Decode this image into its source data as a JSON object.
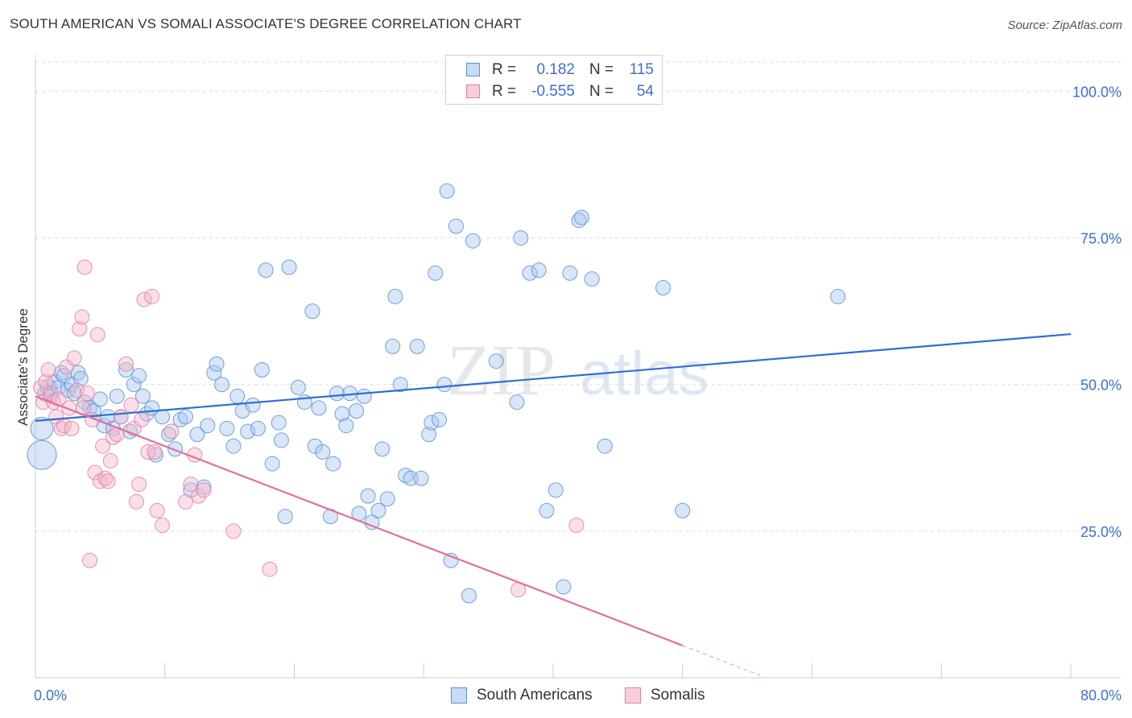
{
  "title": "SOUTH AMERICAN VS SOMALI ASSOCIATE'S DEGREE CORRELATION CHART",
  "source": "Source: ZipAtlas.com",
  "watermark": {
    "zip": "ZIP",
    "atlas": "atlas"
  },
  "colors": {
    "blue_fill": "#a8c8f0",
    "blue_stroke": "#5b8fd6",
    "blue_line": "#2e6fd0",
    "pink_fill": "#f5b8cc",
    "pink_stroke": "#e07fa0",
    "pink_line": "#e0709a",
    "tick_label": "#3a6fd8",
    "grid": "#dddddd"
  },
  "legend": {
    "rows": [
      {
        "r_label": "R =",
        "r_value": "0.182",
        "n_label": "N =",
        "n_value": "115"
      },
      {
        "r_label": "R =",
        "r_value": "-0.555",
        "n_label": "N =",
        "n_value": "54"
      }
    ]
  },
  "bottom_legend": {
    "items": [
      {
        "label": "South Americans"
      },
      {
        "label": "Somalis"
      }
    ]
  },
  "chart_data": {
    "type": "scatter",
    "title": "SOUTH AMERICAN VS SOMALI ASSOCIATE'S DEGREE CORRELATION CHART",
    "xlabel": "",
    "ylabel": "Associate's Degree",
    "xlim": [
      0,
      80
    ],
    "ylim": [
      0,
      105
    ],
    "x_tick_labels": [
      {
        "value": 0,
        "label": "0.0%"
      },
      {
        "value": 80,
        "label": "80.0%"
      }
    ],
    "y_tick_labels": [
      {
        "value": 25,
        "label": "25.0%"
      },
      {
        "value": 50,
        "label": "50.0%"
      },
      {
        "value": 75,
        "label": "75.0%"
      },
      {
        "value": 100,
        "label": "100.0%"
      }
    ],
    "grid": true,
    "legend_position": "top-center",
    "series": [
      {
        "name": "South Americans",
        "r": 0.182,
        "n": 115,
        "trend": {
          "x": [
            0,
            80
          ],
          "y": [
            43.8,
            58.6
          ]
        },
        "points": [
          [
            0.5,
            38.0,
            18
          ],
          [
            0.5,
            42.5,
            14
          ],
          [
            0.8,
            48.5,
            10
          ],
          [
            1.0,
            49.5,
            10
          ],
          [
            1.2,
            48.0,
            9
          ],
          [
            1.5,
            50.5,
            9
          ],
          [
            1.8,
            49.5,
            9
          ],
          [
            2.0,
            52.0,
            9
          ],
          [
            2.2,
            51.5,
            9
          ],
          [
            2.5,
            49.0,
            9
          ],
          [
            2.8,
            50.0,
            9
          ],
          [
            3.0,
            48.5,
            9
          ],
          [
            3.3,
            52.0,
            9
          ],
          [
            3.5,
            51.0,
            9
          ],
          [
            3.8,
            47.0,
            9
          ],
          [
            4.2,
            46.0,
            9
          ],
          [
            4.5,
            45.5,
            9
          ],
          [
            5.0,
            47.5,
            9
          ],
          [
            5.3,
            43.0,
            9
          ],
          [
            5.6,
            44.5,
            9
          ],
          [
            6.0,
            42.5,
            9
          ],
          [
            6.3,
            48.0,
            9
          ],
          [
            6.6,
            44.5,
            9
          ],
          [
            7.0,
            52.5,
            9
          ],
          [
            7.3,
            42.0,
            9
          ],
          [
            7.6,
            50.0,
            9
          ],
          [
            8.0,
            51.5,
            9
          ],
          [
            8.3,
            48.0,
            9
          ],
          [
            8.6,
            45.0,
            9
          ],
          [
            9.0,
            46.0,
            9
          ],
          [
            9.3,
            38.0,
            9
          ],
          [
            9.8,
            44.5,
            9
          ],
          [
            10.3,
            41.5,
            9
          ],
          [
            10.8,
            39.0,
            9
          ],
          [
            11.2,
            44.0,
            9
          ],
          [
            11.6,
            44.5,
            9
          ],
          [
            12.0,
            32.0,
            9
          ],
          [
            12.5,
            41.5,
            9
          ],
          [
            13.0,
            32.5,
            9
          ],
          [
            13.3,
            43.0,
            9
          ],
          [
            13.8,
            52.0,
            9
          ],
          [
            14.0,
            53.5,
            9
          ],
          [
            14.4,
            50.0,
            9
          ],
          [
            14.8,
            42.5,
            9
          ],
          [
            15.3,
            39.5,
            9
          ],
          [
            15.6,
            48.0,
            9
          ],
          [
            16.0,
            45.5,
            9
          ],
          [
            16.4,
            42.0,
            9
          ],
          [
            16.8,
            46.5,
            9
          ],
          [
            17.2,
            42.5,
            9
          ],
          [
            17.5,
            52.5,
            9
          ],
          [
            17.8,
            69.5,
            9
          ],
          [
            18.3,
            36.5,
            9
          ],
          [
            18.8,
            43.5,
            9
          ],
          [
            19.0,
            40.5,
            9
          ],
          [
            19.3,
            27.5,
            9
          ],
          [
            19.6,
            70.0,
            9
          ],
          [
            20.3,
            49.5,
            9
          ],
          [
            20.8,
            47.0,
            9
          ],
          [
            21.4,
            62.5,
            9
          ],
          [
            21.6,
            39.5,
            9
          ],
          [
            21.9,
            46.0,
            9
          ],
          [
            22.2,
            38.5,
            9
          ],
          [
            22.8,
            27.5,
            9
          ],
          [
            23.0,
            36.5,
            9
          ],
          [
            23.3,
            48.5,
            9
          ],
          [
            23.7,
            45.0,
            9
          ],
          [
            24.0,
            43.0,
            9
          ],
          [
            24.3,
            48.5,
            9
          ],
          [
            24.8,
            45.5,
            9
          ],
          [
            25.0,
            28.0,
            9
          ],
          [
            25.4,
            48.0,
            9
          ],
          [
            25.7,
            31.0,
            9
          ],
          [
            26.0,
            26.5,
            9
          ],
          [
            26.5,
            28.5,
            9
          ],
          [
            26.8,
            39.0,
            9
          ],
          [
            27.2,
            30.5,
            9
          ],
          [
            27.6,
            56.5,
            9
          ],
          [
            27.8,
            65.0,
            9
          ],
          [
            28.2,
            50.0,
            9
          ],
          [
            28.6,
            34.5,
            9
          ],
          [
            29.0,
            34.0,
            9
          ],
          [
            29.5,
            56.5,
            9
          ],
          [
            29.8,
            34.0,
            9
          ],
          [
            30.4,
            41.5,
            9
          ],
          [
            30.6,
            43.5,
            9
          ],
          [
            30.9,
            69.0,
            9
          ],
          [
            31.2,
            44.0,
            9
          ],
          [
            31.6,
            50.0,
            9
          ],
          [
            31.8,
            83.0,
            9
          ],
          [
            32.1,
            20.0,
            9
          ],
          [
            32.5,
            77.0,
            9
          ],
          [
            33.5,
            14.0,
            9
          ],
          [
            33.8,
            74.5,
            9
          ],
          [
            35.6,
            54.0,
            9
          ],
          [
            37.2,
            47.0,
            9
          ],
          [
            37.5,
            75.0,
            9
          ],
          [
            38.2,
            69.0,
            9
          ],
          [
            38.9,
            69.5,
            9
          ],
          [
            39.5,
            28.5,
            9
          ],
          [
            40.2,
            32.0,
            9
          ],
          [
            40.8,
            15.5,
            9
          ],
          [
            41.3,
            69.0,
            9
          ],
          [
            42.0,
            78.0,
            9
          ],
          [
            42.2,
            78.5,
            9
          ],
          [
            43.0,
            68.0,
            9
          ],
          [
            44.0,
            39.5,
            9
          ],
          [
            48.5,
            66.5,
            9
          ],
          [
            50.0,
            28.5,
            9
          ],
          [
            62.0,
            65.0,
            9
          ]
        ]
      },
      {
        "name": "Somalis",
        "r": -0.555,
        "n": 54,
        "trend": {
          "x": [
            0,
            50
          ],
          "y": [
            48.0,
            5.5
          ]
        },
        "trend_dashed": {
          "x": [
            50,
            56
          ],
          "y": [
            5.5,
            0.4
          ]
        },
        "points": [
          [
            0.4,
            49.5,
            9
          ],
          [
            0.6,
            47.0,
            9
          ],
          [
            0.8,
            50.5,
            9
          ],
          [
            1.0,
            52.5,
            9
          ],
          [
            1.2,
            48.5,
            9
          ],
          [
            1.4,
            47.0,
            9
          ],
          [
            1.6,
            44.5,
            9
          ],
          [
            1.8,
            47.5,
            9
          ],
          [
            2.0,
            42.5,
            9
          ],
          [
            2.2,
            43.0,
            9
          ],
          [
            2.4,
            53.0,
            9
          ],
          [
            2.6,
            46.0,
            9
          ],
          [
            2.8,
            42.5,
            9
          ],
          [
            3.0,
            54.5,
            9
          ],
          [
            3.2,
            49.0,
            9
          ],
          [
            3.4,
            59.5,
            9
          ],
          [
            3.6,
            61.5,
            9
          ],
          [
            3.7,
            46.0,
            9
          ],
          [
            3.8,
            70.0,
            9
          ],
          [
            4.0,
            48.5,
            9
          ],
          [
            4.2,
            20.0,
            9
          ],
          [
            4.4,
            44.0,
            9
          ],
          [
            4.6,
            35.0,
            9
          ],
          [
            4.8,
            58.5,
            9
          ],
          [
            5.0,
            33.5,
            9
          ],
          [
            5.2,
            39.5,
            9
          ],
          [
            5.4,
            34.0,
            9
          ],
          [
            5.6,
            33.5,
            9
          ],
          [
            5.8,
            37.0,
            9
          ],
          [
            6.0,
            41.0,
            9
          ],
          [
            6.3,
            41.5,
            9
          ],
          [
            6.6,
            44.5,
            9
          ],
          [
            7.0,
            53.5,
            9
          ],
          [
            7.4,
            46.5,
            9
          ],
          [
            7.6,
            42.5,
            9
          ],
          [
            7.8,
            30.0,
            9
          ],
          [
            8.0,
            33.0,
            9
          ],
          [
            8.2,
            44.0,
            9
          ],
          [
            8.4,
            64.5,
            9
          ],
          [
            8.7,
            38.5,
            9
          ],
          [
            9.0,
            65.0,
            9
          ],
          [
            9.2,
            38.5,
            9
          ],
          [
            9.4,
            28.5,
            9
          ],
          [
            9.8,
            26.0,
            9
          ],
          [
            10.5,
            42.0,
            9
          ],
          [
            11.6,
            30.0,
            9
          ],
          [
            12.0,
            33.0,
            9
          ],
          [
            12.3,
            38.0,
            9
          ],
          [
            12.6,
            31.0,
            9
          ],
          [
            13.0,
            32.0,
            9
          ],
          [
            15.3,
            25.0,
            9
          ],
          [
            18.1,
            18.5,
            9
          ],
          [
            37.3,
            15.0,
            9
          ],
          [
            41.8,
            26.0,
            9
          ]
        ]
      }
    ]
  }
}
